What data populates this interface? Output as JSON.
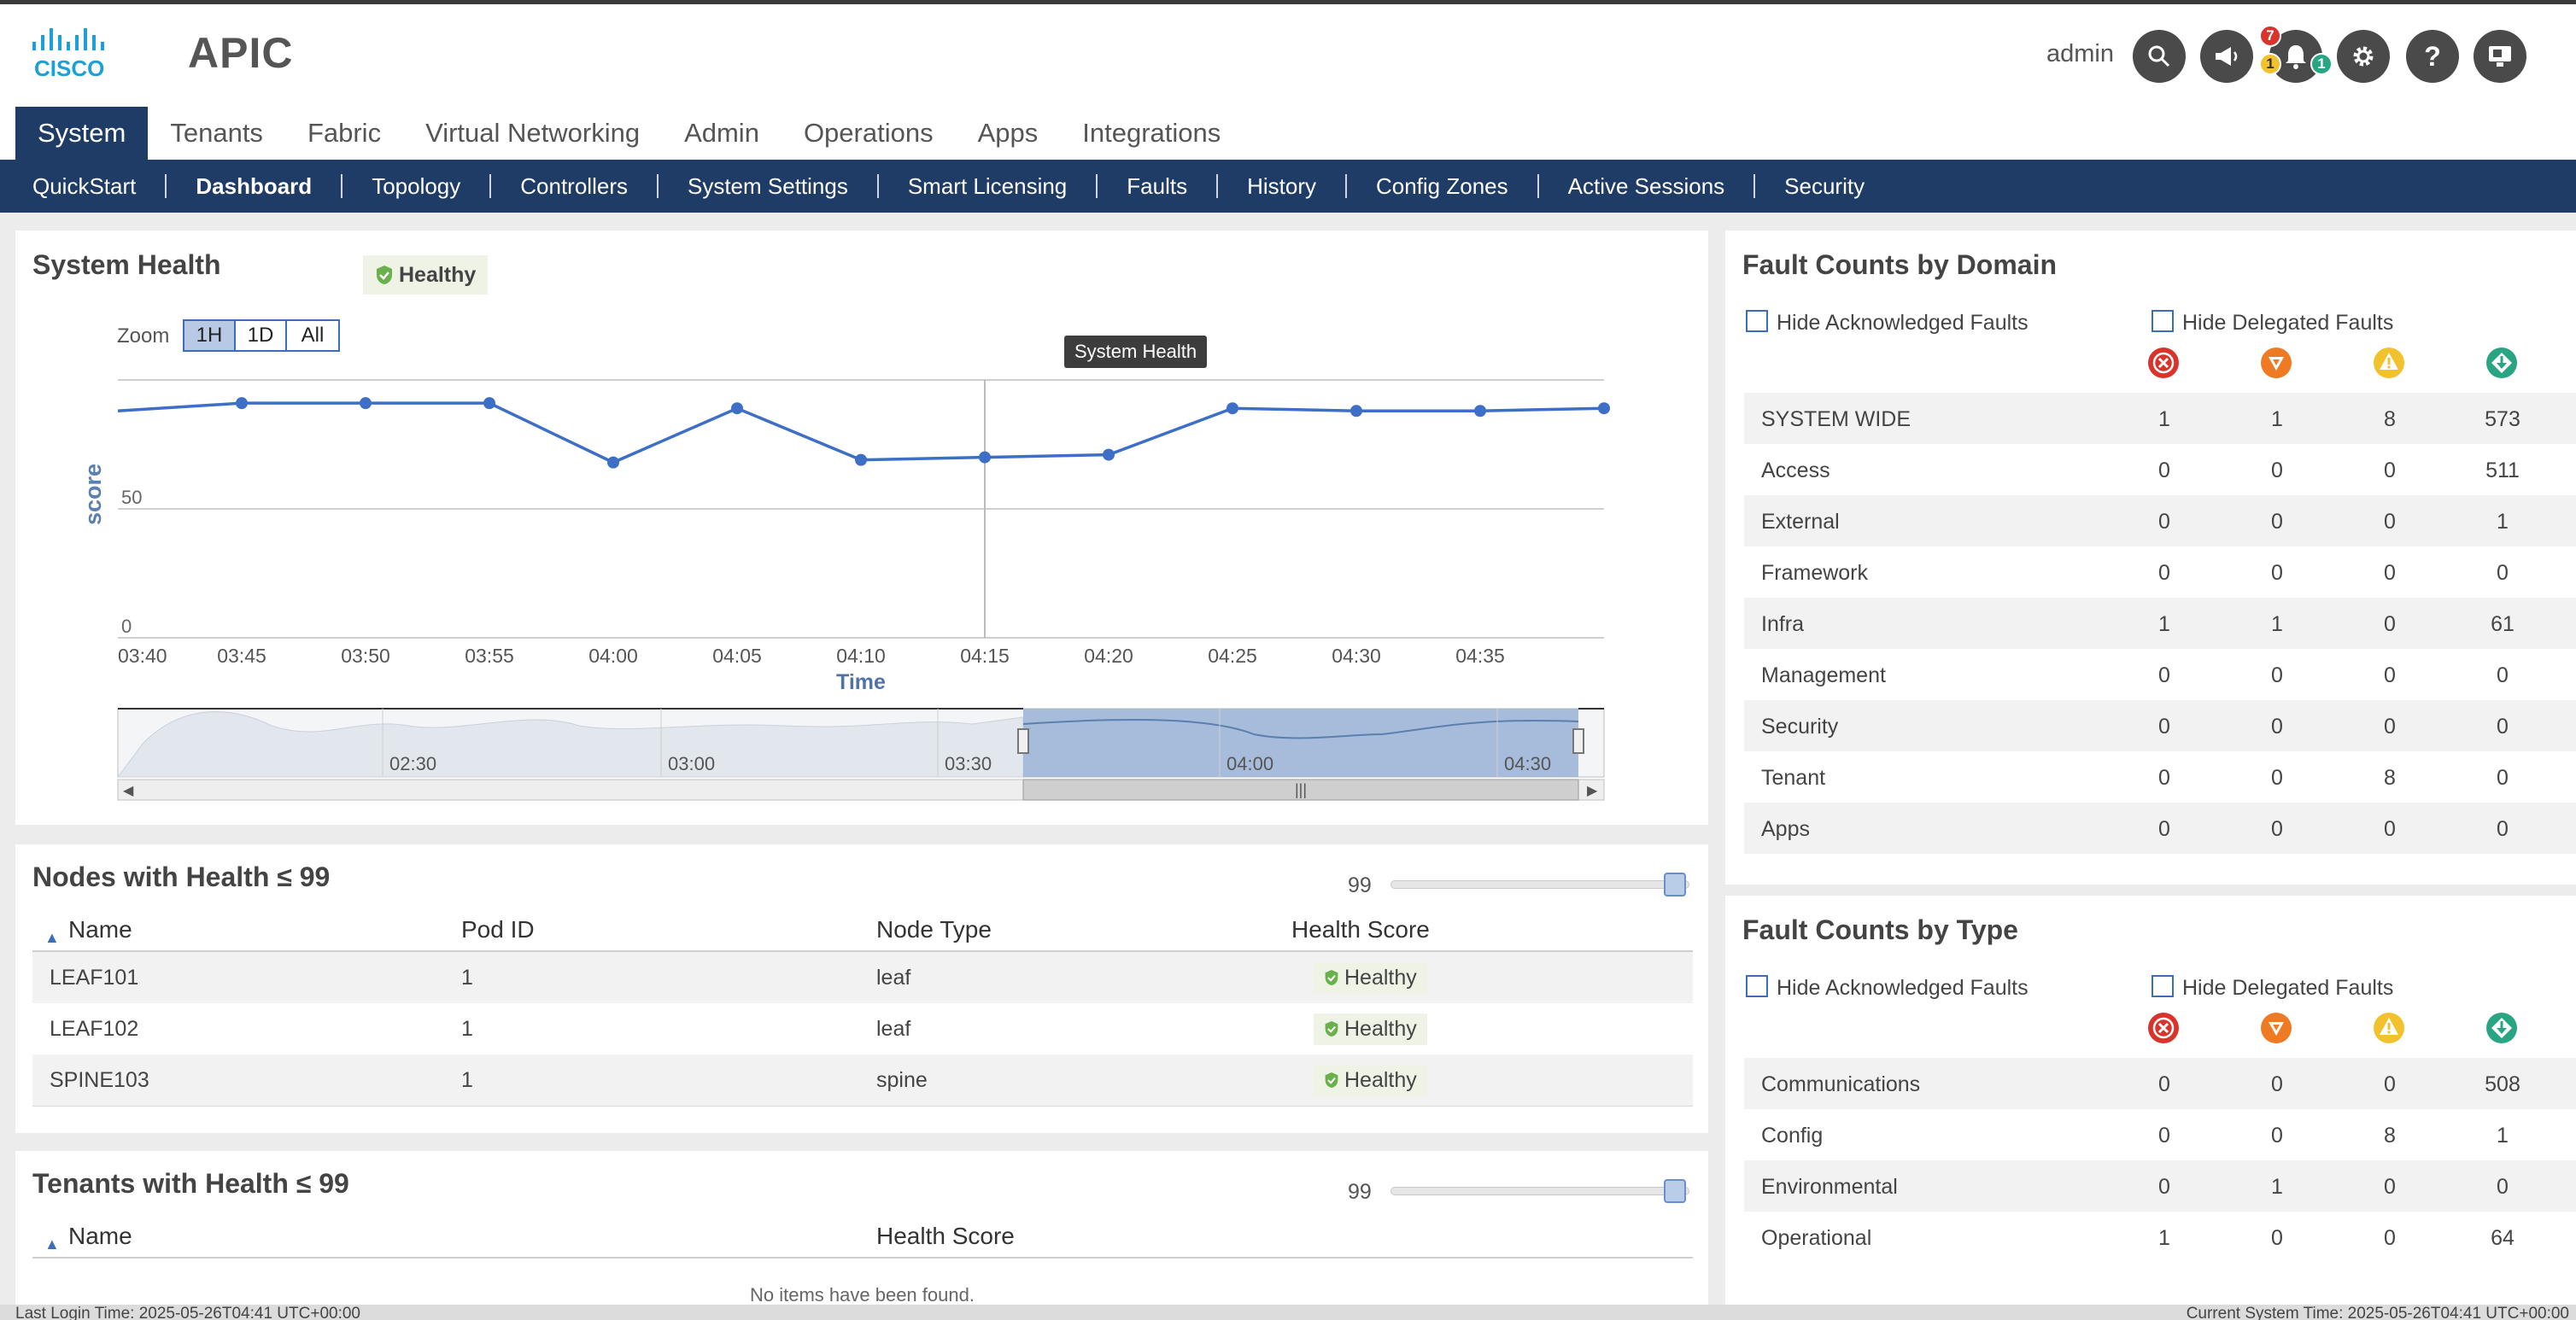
{
  "header": {
    "app_title": "APIC",
    "user": "admin",
    "badges": {
      "critical": "7",
      "major": "1",
      "minor": "1"
    }
  },
  "main_tabs": [
    "System",
    "Tenants",
    "Fabric",
    "Virtual Networking",
    "Admin",
    "Operations",
    "Apps",
    "Integrations"
  ],
  "sub_nav": [
    "QuickStart",
    "Dashboard",
    "Topology",
    "Controllers",
    "System Settings",
    "Smart Licensing",
    "Faults",
    "History",
    "Config Zones",
    "Active Sessions",
    "Security"
  ],
  "system_health": {
    "title": "System Health",
    "status": "Healthy",
    "zoom_label": "Zoom",
    "zoom_options": [
      "1H",
      "1D",
      "All"
    ],
    "tooltip": "System Health"
  },
  "chart_data": {
    "type": "line",
    "xlabel": "Time",
    "ylabel": "score",
    "x": [
      "03:40",
      "03:45",
      "03:50",
      "03:55",
      "04:00",
      "04:05",
      "04:10",
      "04:15",
      "04:20",
      "04:25",
      "04:30",
      "04:35",
      "04:40"
    ],
    "values": [
      88,
      91,
      91,
      91,
      68,
      89,
      69,
      70,
      71,
      89,
      88,
      88,
      89
    ],
    "y_ticks": [
      "0",
      "50"
    ],
    "x_ticks": [
      "03:40",
      "03:45",
      "03:50",
      "03:55",
      "04:00",
      "04:05",
      "04:10",
      "04:15",
      "04:20",
      "04:25",
      "04:30",
      "04:35"
    ],
    "navigator_ticks": [
      "02:30",
      "03:00",
      "03:30",
      "04:00",
      "04:30"
    ],
    "series_color": "#3d6fc6",
    "grid": true
  },
  "nodes": {
    "title": "Nodes with Health ≤ 99",
    "slider_value": "99",
    "columns": [
      "Name",
      "Pod ID",
      "Node Type",
      "Health Score"
    ],
    "rows": [
      {
        "name": "LEAF101",
        "pod": "1",
        "type": "leaf",
        "health": "Healthy"
      },
      {
        "name": "LEAF102",
        "pod": "1",
        "type": "leaf",
        "health": "Healthy"
      },
      {
        "name": "SPINE103",
        "pod": "1",
        "type": "spine",
        "health": "Healthy"
      }
    ]
  },
  "tenants": {
    "title": "Tenants with Health ≤ 99",
    "slider_value": "99",
    "columns": [
      "Name",
      "Health Score"
    ],
    "empty": "No items have been found."
  },
  "fault_domain": {
    "title": "Fault Counts by Domain",
    "hide_ack": "Hide Acknowledged Faults",
    "hide_del": "Hide Delegated Faults",
    "rows": [
      {
        "label": "SYSTEM WIDE",
        "c": "1",
        "m": "1",
        "w": "8",
        "n": "573"
      },
      {
        "label": "Access",
        "c": "0",
        "m": "0",
        "w": "0",
        "n": "511"
      },
      {
        "label": "External",
        "c": "0",
        "m": "0",
        "w": "0",
        "n": "1"
      },
      {
        "label": "Framework",
        "c": "0",
        "m": "0",
        "w": "0",
        "n": "0"
      },
      {
        "label": "Infra",
        "c": "1",
        "m": "1",
        "w": "0",
        "n": "61"
      },
      {
        "label": "Management",
        "c": "0",
        "m": "0",
        "w": "0",
        "n": "0"
      },
      {
        "label": "Security",
        "c": "0",
        "m": "0",
        "w": "0",
        "n": "0"
      },
      {
        "label": "Tenant",
        "c": "0",
        "m": "0",
        "w": "8",
        "n": "0"
      },
      {
        "label": "Apps",
        "c": "0",
        "m": "0",
        "w": "0",
        "n": "0"
      }
    ]
  },
  "fault_type": {
    "title": "Fault Counts by Type",
    "hide_ack": "Hide Acknowledged Faults",
    "hide_del": "Hide Delegated Faults",
    "rows": [
      {
        "label": "Communications",
        "c": "0",
        "m": "0",
        "w": "0",
        "n": "508"
      },
      {
        "label": "Config",
        "c": "0",
        "m": "0",
        "w": "8",
        "n": "1"
      },
      {
        "label": "Environmental",
        "c": "0",
        "m": "1",
        "w": "0",
        "n": "0"
      },
      {
        "label": "Operational",
        "c": "1",
        "m": "0",
        "w": "0",
        "n": "64"
      }
    ]
  },
  "footer": {
    "last_login": "Last Login Time: 2025-05-26T04:41 UTC+00:00",
    "current_time": "Current System Time: 2025-05-26T04:41 UTC+00:00"
  },
  "colors": {
    "nav": "#1f3c67",
    "critical": "#d9342b",
    "major": "#ee7b24",
    "minor": "#f2c12e",
    "warning": "#2aa583",
    "healthy": "#6ab04c"
  }
}
